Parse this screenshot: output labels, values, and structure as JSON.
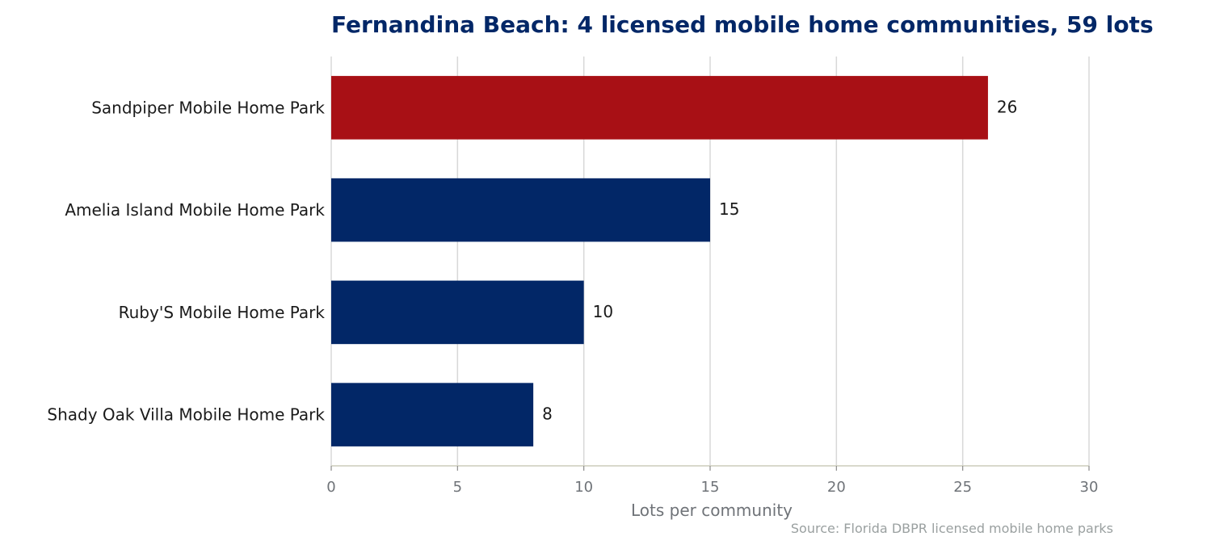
{
  "chart_data": {
    "type": "bar",
    "orientation": "horizontal",
    "title": "Fernandina Beach: 4 licensed mobile home communities, 59 lots",
    "xlabel": "Lots per community",
    "ylabel": "",
    "source": "Source: Florida DBPR licensed mobile home parks",
    "categories": [
      "Sandpiper Mobile Home Park",
      "Amelia Island Mobile Home Park",
      "Ruby'S Mobile Home Park",
      "Shady Oak Villa Mobile Home Park"
    ],
    "values": [
      26,
      15,
      10,
      8
    ],
    "xlim": [
      0,
      30
    ],
    "xticks": [
      0,
      5,
      10,
      15,
      20,
      25,
      30
    ],
    "grid": "vertical",
    "legend": "none",
    "colors": {
      "highlight": "#a81015",
      "bar": "#022767",
      "title": "#022767",
      "grid": "#d8d8d8",
      "axis": "#d9d9cc"
    },
    "highlight_index": 0
  }
}
